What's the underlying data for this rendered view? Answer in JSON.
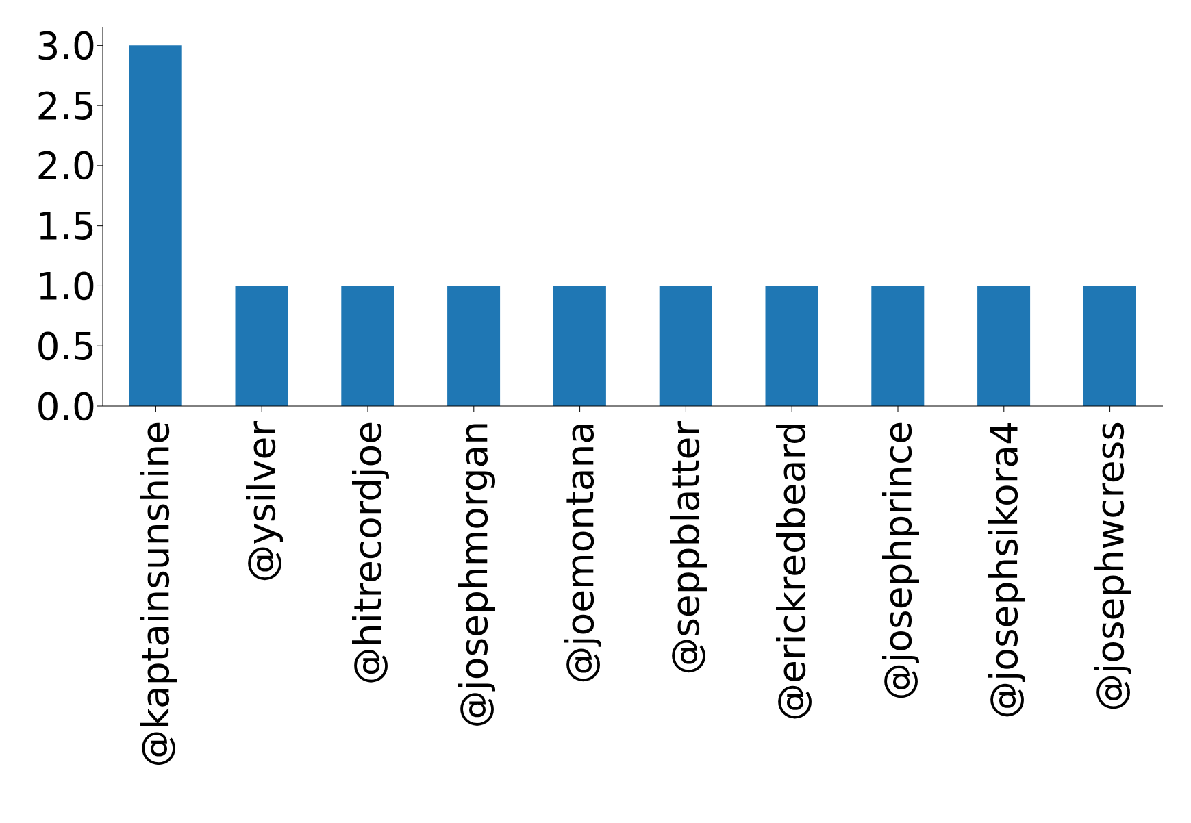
{
  "chart_data": {
    "type": "bar",
    "categories": [
      "@kaptainsunshine",
      "@ysilver",
      "@hitrecordjoe",
      "@josephmorgan",
      "@joemontana",
      "@seppblatter",
      "@erickredbeard",
      "@josephprince",
      "@josephsikora4",
      "@josephwcress"
    ],
    "values": [
      3,
      1,
      1,
      1,
      1,
      1,
      1,
      1,
      1,
      1
    ],
    "color": "#1f77b4",
    "ylim": [
      0,
      3.15
    ],
    "yticks": [
      {
        "value": 0,
        "label": "0.0"
      },
      {
        "value": 0.5,
        "label": "0.5"
      },
      {
        "value": 1,
        "label": "1.0"
      },
      {
        "value": 1.5,
        "label": "1.5"
      },
      {
        "value": 2,
        "label": "2.0"
      },
      {
        "value": 2.5,
        "label": "2.5"
      },
      {
        "value": 3,
        "label": "3.0"
      }
    ],
    "grid": false,
    "legend": false
  }
}
